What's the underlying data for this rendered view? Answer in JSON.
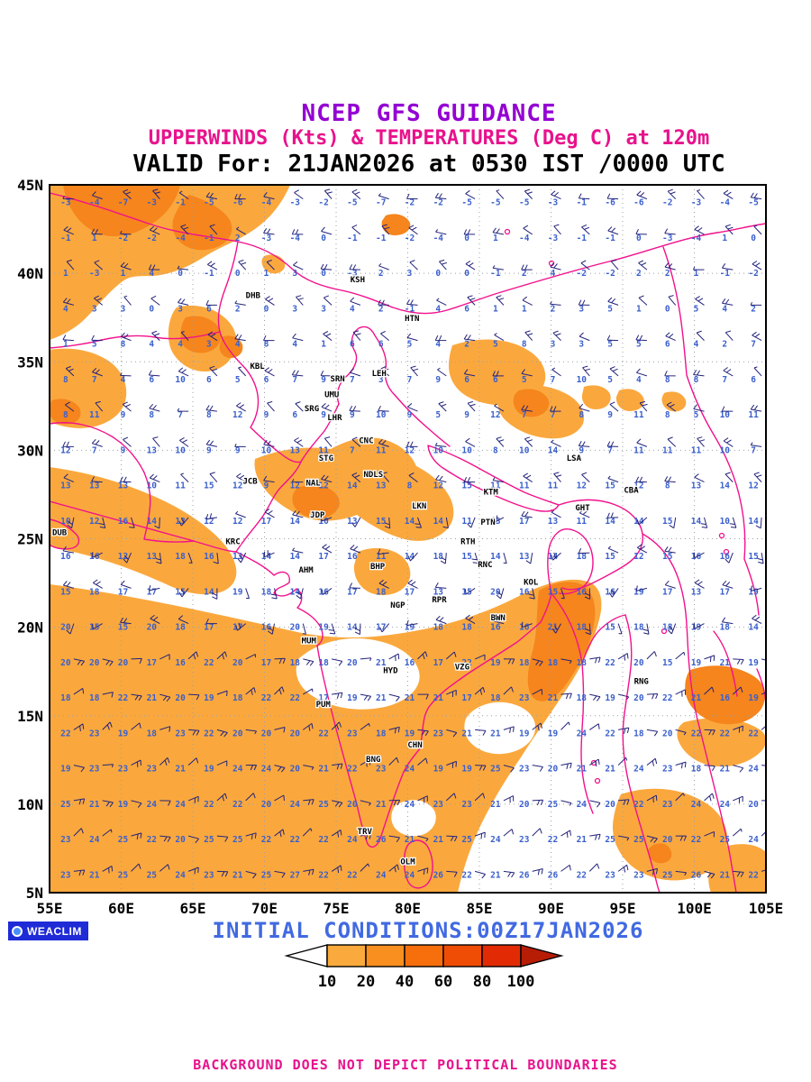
{
  "titles": {
    "line1": "NCEP GFS GUIDANCE",
    "line2": "UPPERWINDS (Kts) & TEMPERATURES (Deg C) at 120m",
    "line3": "VALID For: 21JAN2026 at 0530 IST /0000 UTC"
  },
  "colors": {
    "title1": "#9400D3",
    "title2": "#E8128C",
    "title3": "#000000",
    "initial": "#4169E1",
    "disclaimer": "#E8128C",
    "grid": "#9AA0A8",
    "frame": "#000000",
    "barb": "#23237A",
    "temp": "#3A5FCD",
    "station": "#000000"
  },
  "axes": {
    "lon_range": [
      55,
      105
    ],
    "lat_range": [
      5,
      45
    ],
    "lon_ticks": [
      "55E",
      "60E",
      "65E",
      "70E",
      "75E",
      "80E",
      "85E",
      "90E",
      "95E",
      "100E",
      "105E"
    ],
    "lat_ticks": [
      "45N",
      "40N",
      "35N",
      "30N",
      "25N",
      "20N",
      "15N",
      "10N",
      "5N"
    ]
  },
  "legend": {
    "values": [
      "10",
      "20",
      "40",
      "60",
      "80",
      "100"
    ],
    "colors": [
      "#FAAA3C",
      "#F98F1F",
      "#F76E0C",
      "#EF4D06",
      "#E22B04"
    ],
    "arrow_left_color": "#FFFFFF",
    "arrow_right_color": "#B71C04"
  },
  "stations": [
    {
      "code": "DHB",
      "lon": 69.2,
      "lat": 38.6
    },
    {
      "code": "KSH",
      "lon": 76.5,
      "lat": 39.5
    },
    {
      "code": "HTN",
      "lon": 80.3,
      "lat": 37.3
    },
    {
      "code": "KBL",
      "lon": 69.5,
      "lat": 34.6
    },
    {
      "code": "LEH",
      "lon": 78.0,
      "lat": 34.2
    },
    {
      "code": "SRN",
      "lon": 75.1,
      "lat": 33.9
    },
    {
      "code": "UMU",
      "lon": 74.7,
      "lat": 33.0
    },
    {
      "code": "SRG",
      "lon": 73.3,
      "lat": 32.2
    },
    {
      "code": "LHR",
      "lon": 74.9,
      "lat": 31.7
    },
    {
      "code": "CNC",
      "lon": 77.1,
      "lat": 30.4
    },
    {
      "code": "STG",
      "lon": 74.3,
      "lat": 29.4
    },
    {
      "code": "JCB",
      "lon": 69.0,
      "lat": 28.1
    },
    {
      "code": "NAL",
      "lon": 73.4,
      "lat": 28.0
    },
    {
      "code": "NDLS",
      "lon": 77.6,
      "lat": 28.5
    },
    {
      "code": "KTM",
      "lon": 85.8,
      "lat": 27.5
    },
    {
      "code": "LSA",
      "lon": 91.6,
      "lat": 29.4
    },
    {
      "code": "CBA",
      "lon": 95.6,
      "lat": 27.6
    },
    {
      "code": "GHT",
      "lon": 92.2,
      "lat": 26.6
    },
    {
      "code": "JDP",
      "lon": 73.7,
      "lat": 26.2
    },
    {
      "code": "LKN",
      "lon": 80.8,
      "lat": 26.7
    },
    {
      "code": "PTN",
      "lon": 85.6,
      "lat": 25.8
    },
    {
      "code": "DUB",
      "lon": 55.7,
      "lat": 25.2
    },
    {
      "code": "KRC",
      "lon": 67.8,
      "lat": 24.7
    },
    {
      "code": "RTH",
      "lon": 84.2,
      "lat": 24.7
    },
    {
      "code": "AHM",
      "lon": 72.9,
      "lat": 23.1
    },
    {
      "code": "BHP",
      "lon": 77.9,
      "lat": 23.3
    },
    {
      "code": "RNC",
      "lon": 85.4,
      "lat": 23.4
    },
    {
      "code": "KOL",
      "lon": 88.6,
      "lat": 22.4
    },
    {
      "code": "NGP",
      "lon": 79.3,
      "lat": 21.1
    },
    {
      "code": "RPR",
      "lon": 82.2,
      "lat": 21.4
    },
    {
      "code": "BWN",
      "lon": 86.3,
      "lat": 20.4
    },
    {
      "code": "MUM",
      "lon": 73.1,
      "lat": 19.1
    },
    {
      "code": "HYD",
      "lon": 78.8,
      "lat": 17.4
    },
    {
      "code": "VZG",
      "lon": 83.8,
      "lat": 17.6
    },
    {
      "code": "PUM",
      "lon": 74.1,
      "lat": 15.5
    },
    {
      "code": "RNG",
      "lon": 96.3,
      "lat": 16.8
    },
    {
      "code": "CHN",
      "lon": 80.5,
      "lat": 13.2
    },
    {
      "code": "BNG",
      "lon": 77.6,
      "lat": 12.4
    },
    {
      "code": "TRV",
      "lon": 77.0,
      "lat": 8.3
    },
    {
      "code": "OLM",
      "lon": 80.0,
      "lat": 6.6
    }
  ],
  "wind_grid": {
    "lon_start": 56.5,
    "lon_step": 2,
    "cols": 25,
    "lat_start": 6,
    "lat_step": 2,
    "rows": 20,
    "units_wind": "Kts",
    "units_temp": "Deg C"
  },
  "shading": {
    "light_color": "#FAA83D",
    "dark_color": "#F5851C",
    "light_paths": [
      "M55 205 L322 205 C312 228 298 244 280 256 C262 268 244 274 228 284 C212 294 196 302 178 305 C162 308 148 303 136 312 C121 323 109 339 95 353 C83 365 69 372 55 377 Z",
      "M55 388 C80 384 105 389 123 402 C137 413 143 429 139 445 C135 459 122 469 105 473 C88 477 70 474 55 468 Z",
      "M55 518 C92 523 126 532 158 545 C186 556 212 570 233 588 C249 601 259 615 262 630 C264 643 257 653 244 657 C227 662 207 658 189 650 C163 638 137 628 111 620 C92 614 72 610 55 606 Z",
      "M196 341 C215 336 235 340 249 352 C261 362 266 377 260 391 C254 404 242 412 227 412 C212 412 198 403 191 390 C184 377 186 352 196 341 Z",
      "M283 509 C310 498 340 494 367 498 C387 487 408 482 428 488 C444 493 456 503 462 517 C478 525 492 537 500 553 C506 567 504 581 493 590 C481 600 465 602 449 598 C430 593 412 583 396 571 C378 578 358 580 340 574 C322 568 306 557 295 544 C285 532 281 520 283 509 Z",
      "M397 612 C415 605 433 607 446 617 C456 626 459 640 450 650 C441 660 424 663 410 657 C398 651 392 639 393 627 Z",
      "M502 383 C526 375 551 374 573 382 C591 389 603 400 605 414 C607 428 597 440 581 446 C562 452 540 450 523 442 C507 435 498 421 498 406 C498 397 500 389 502 383 Z",
      "M559 430 C583 424 607 426 627 436 C643 444 651 457 647 470 C641 482 625 488 607 486 C588 484 570 476 559 464 C550 454 551 440 559 430 Z",
      "M648 429 C661 425 673 429 677 437 C680 446 673 454 661 454 C651 454 645 446 646 438 Z",
      "M687 433 C699 429 710 433 714 441 C717 449 710 456 699 456 C689 456 683 448 684 440 Z",
      "M737 436 C748 432 758 436 761 444 C763 452 755 458 745 456 C737 454 733 446 735 440 Z",
      "M293 284 C303 280 313 284 316 291 C318 299 310 305 301 303 C293 301 289 293 291 287 Z",
      "M55 648 C150 660 245 682 330 701 C379 711 420 707 459 700 C499 693 539 680 574 662 C599 649 630 638 652 645 C668 650 670 669 665 687 C659 712 647 736 633 758 C615 786 595 813 578 840 C562 863 548 886 536 910 C524 934 514 962 508 990 L55 990 Z",
      "M759 801 C789 793 821 795 843 809 C852 815 852 825 845 833 C831 847 809 853 788 849 C770 845 756 833 752 819 C750 811 753 805 759 801 Z",
      "M689 881 C719 871 751 873 777 887 C797 897 809 915 807 935 C805 953 791 967 771 973 C748 980 722 976 703 962 C685 948 677 927 681 907 C683 895 686 887 689 881 Z",
      "M799 941 C819 933 839 935 850 945 L850 990 L789 990 C783 974 787 953 799 941 Z"
    ],
    "white_holes": [
      "M331 731 C351 713 381 705 410 709 C439 713 461 727 465 745 C469 762 453 778 427 784 C400 790 369 786 347 772 C331 762 325 747 331 731 Z",
      "M517 797 C524 785 542 777 560 779 C578 781 593 791 594 805 C595 819 583 831 565 835 C547 839 529 833 520 821 C515 814 514 805 517 797 Z",
      "M439 893 C453 885 469 885 479 895 C487 903 485 917 473 924 C461 930 446 928 438 918 C432 910 434 899 439 893 Z"
    ],
    "dark_paths": [
      "M70 205 L200 205 C196 222 186 236 172 246 C158 256 142 262 126 262 C110 262 96 254 86 242 C78 232 72 219 70 205 Z",
      "M210 216 C229 222 247 231 255 244 C261 256 255 267 243 273 C229 279 214 279 203 271 C193 264 189 252 193 241 C197 231 203 221 210 216 Z",
      "M58 444 C70 440 82 444 88 452 C92 460 88 468 78 470 C68 472 59 468 55 460 L55 448 Z",
      "M206 352 C220 348 234 352 242 362 C248 370 246 382 236 388 C226 394 212 392 204 384 C198 376 200 360 206 352 Z",
      "M246 374 C256 370 265 374 269 382 C271 390 265 397 256 397 C248 397 242 390 244 382 Z",
      "M330 541 C346 535 362 537 372 547 C380 555 378 566 366 572 C352 578 336 574 328 564 C322 556 324 547 330 541 Z",
      "M576 433 C590 429 602 433 608 442 C612 450 606 460 594 462 C582 464 572 458 570 448 C569 441 571 436 576 433 Z",
      "M428 239 C440 235 451 239 455 247 C457 255 449 261 438 261 C428 261 422 253 424 245 Z",
      "M598 655 C616 645 636 641 650 651 C661 661 663 680 657 702 C651 724 639 744 626 762 C614 776 600 783 591 773 C583 763 585 744 591 722 C597 700 595 677 598 655 Z",
      "M766 743 C790 735 815 737 835 749 C849 757 853 772 845 786 C835 800 816 806 797 802 C779 798 765 786 761 770 C759 759 761 749 766 743 Z",
      "M725 937 C735 933 743 937 745 945 C747 953 739 959 730 957 C722 955 718 947 720 941 Z"
    ]
  },
  "boundaries": {
    "color": "#F2118C",
    "paths": [
      "M55 556 C100 568 160 585 215 600 C235 606 250 611 262 612",
      "M262 612 C280 621 294 628 304 638 C314 631 323 635 321 646 C314 652 308 650 304 658 C312 664 322 660 329 653 C337 658 336 668 330 674 C340 679 350 685 356 696 C360 706 358 712 352 716",
      "M352 716 C356 741 362 765 368 789 C376 821 386 856 396 892 C400 910 404 926 408 936",
      "M408 936 C412 942 418 940 422 930 C430 906 438 880 448 856 C455 842 462 836 466 830 C470 812 468 796 476 784 C488 768 504 758 518 748 C536 736 556 724 574 712 C584 704 592 697 600 690 C606 678 610 668 612 658",
      "M262 612 C272 596 284 584 292 572 C300 560 304 548 312 540 C322 530 330 522 334 512 C342 498 352 488 360 478 C368 466 372 456 376 448",
      "M376 448 C372 436 376 424 386 416 C394 408 398 398 394 390 C388 380 390 370 398 364 C406 360 412 364 416 372 C424 384 430 396 428 408 C426 420 430 430 438 438",
      "M438 438 C450 452 462 464 475 475 C483 482 491 489 499 495",
      "M475 494 C493 500 511 508 529 518 C547 528 565 538 582 546 C596 552 609 556 620 560 C616 568 606 568 595 566 C577 562 559 554 541 546 C523 538 505 528 490 518 C482 512 476 504 475 494 Z",
      "M620 560 C640 553 663 552 683 560 C699 566 711 578 713 592 C715 606 707 618 695 626 C683 634 669 641 657 647 C645 653 633 656 624 652",
      "M612 658 C608 640 606 621 610 605 C614 593 622 585 632 587 C644 589 652 598 656 610 C660 624 658 638 650 648 C642 656 631 660 621 658",
      "M452 938 C458 930 468 930 474 938 C480 948 482 962 478 974 C474 984 464 988 456 982 C448 974 446 950 452 938 Z",
      "M55 214 C90 222 130 236 165 248 C200 260 234 262 264 268 C289 273 309 284 324 298 C339 312 359 318 379 322 C399 326 418 334 436 341 C456 348 476 350 496 344 C516 338 536 330 556 324 C596 312 636 300 676 290 C716 280 756 264 796 258 C816 255 834 250 850 248",
      "M264 268 C261 286 256 304 250 320 C244 336 240 352 244 368 C248 382 258 394 268 404 C278 414 284 426 286 438 C288 452 284 464 278 474 C290 486 302 496 314 505 C322 511 329 514 334 512",
      "M244 368 C220 374 196 378 172 374 C148 370 124 374 100 380 C84 383 68 385 55 386",
      "M55 470 C80 466 104 472 124 484 C140 494 152 508 160 524 C166 538 168 552 166 566 C165 578 162 588 160 598 C178 601 198 602 215 600",
      "M55 576 C66 578 76 584 84 592 C90 598 88 606 80 608 C70 610 60 608 55 604",
      "M612 658 C620 668 628 680 634 694 C640 708 644 722 646 736 C650 722 656 710 664 700 C674 690 684 684 694 682",
      "M694 682 C700 700 702 720 700 740 C698 760 694 780 692 800 C690 820 692 840 696 860 C700 880 706 900 712 920 C718 940 724 960 729 980 C730 984 731 987 732 990",
      "M646 736 C648 760 648 784 646 808 C645 826 644 844 647 862 C649 876 653 890 658 902",
      "M713 592 C727 600 739 612 747 628 C755 644 759 662 761 680 C763 700 763 720 765 740 C767 764 771 788 777 810 C783 834 789 858 795 882 C801 906 807 930 811 954 C813 966 815 978 817 990",
      "M736 274 C744 296 750 320 754 344 C758 368 760 392 762 416 C770 440 780 462 792 482 C804 502 814 524 820 548 C826 572 828 596 826 620 C834 640 840 660 842 682",
      "M840 742 C846 756 850 770 850 784",
      "M792 700 C800 710 806 722 810 736 C814 748 816 760 818 772"
    ],
    "marker_dots": [
      [
        563,
        257
      ],
      [
        612,
        292
      ],
      [
        801,
        594
      ],
      [
        806,
        612
      ],
      [
        659,
        846
      ],
      [
        663,
        866
      ],
      [
        737,
        700
      ]
    ]
  },
  "footer": {
    "initial_conditions": "INITIAL CONDITIONS:00Z17JAN2026",
    "logo_text": "WEACLIM",
    "disclaimer": "BACKGROUND DOES NOT DEPICT POLITICAL BOUNDARIES"
  }
}
